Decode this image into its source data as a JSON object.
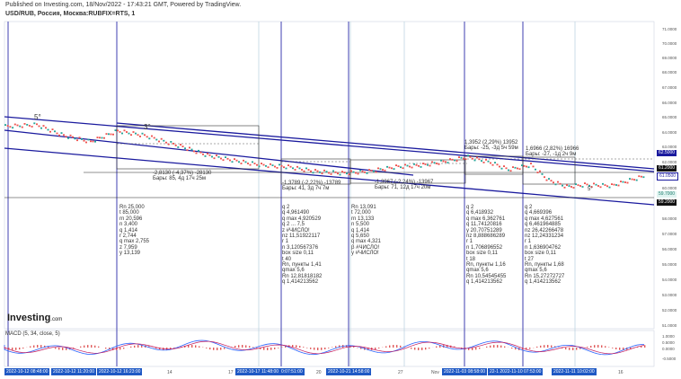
{
  "header": {
    "published": "Published on Investing.com, 18/Nov/2022 - 17:43:21 GMT, Powered by TradingView.",
    "symbol": "USD/RUB, Россия, Москва:RUBFIX=RTS, 1"
  },
  "logo": {
    "name": "Investing",
    "suffix": ".com"
  },
  "indicator": {
    "label": "MACD (5, 34, close, 5)"
  },
  "price_axis": {
    "ticks": [
      "71.0000",
      "70.0000",
      "69.0000",
      "68.0000",
      "67.0000",
      "66.0000",
      "65.0000",
      "64.0000",
      "63.0000",
      "62.0000",
      "60.0000",
      "59.0000",
      "58.0000",
      "57.0000",
      "56.0000",
      "55.0000",
      "54.0000",
      "53.0000",
      "52.0000",
      "51.0000"
    ],
    "labels": {
      "p1": "62.5000",
      "p2": "61.2000",
      "p3": "61.0500",
      "p4": "59.7000",
      "p5": "59.2000"
    },
    "macd_ticks": [
      "1.0000",
      "0.5000",
      "0.0000",
      "-0.5000"
    ]
  },
  "time_axis": {
    "ticks": [
      "14",
      "17",
      "20",
      "27",
      "Nov",
      "16"
    ],
    "selected": [
      "2022-10-12 08:48:00",
      "2022-10-12 11:20:00",
      "2022-10-12 16:23:00",
      "2022-10-17 11:48:00",
      "0:07:51:00",
      "2022-10-21 14:58:00",
      "2022-11-03 08:58:00",
      "22-1 2022-11-10 07:53:00",
      "2022-11-11 10:02:00"
    ]
  },
  "annotations": {
    "wave_a": "5°",
    "wave_b": "3°",
    "wave_c": "5°",
    "measure1": "-2,8130 (-4,37%) -28130\nБары: 85, 4д 17ч 25м",
    "measure2": "-1,3789 (-2,22%) -13789\nБары: 41, 3д 7ч 7м",
    "measure3": "-1,3967 (-2,24%) -13967\nБары: 71, 12д 17ч 20м",
    "measure4": "1,3952 (2,29%) 13952\nБары: -25, -3д 5ч 59м",
    "measure5": "1,6966 (2,82%) 16966\nБары: -27, -1д 2ч 9м",
    "stats1": "Rn 25,000\nt 85,000\nrn 20,596\nn 3,400\nq 1,414\nr 2,744\nq max 2,755\nz 7,959\ny 13,139",
    "stats2": "q 2\nq 4,961490\nq max 4,920529\nq 2 ... 7,5\nz #ЧИСЛО!\nnz 11,51922117\nr 1\nn 3,120567376\nbox size 0,11\nt 40\nRn, пункты 1,41\nqmax 5,6\nRn 12,81818182\nq 1,414213562",
    "stats3": "Rn 13,091\nt 72,000\nrn 13,133\nn 5,500\nq 1,414\nq 5,650\nq max 4,321\nβ #ЧИСЛО!\ny #ЧИСЛО!",
    "stats4": "q 2\nq 6,418932\nq max 6,362761\nq 11,74120816\ny 20,70751289\nnz 8,888686289\nr 1\nn 1,706896552\nbox size 0,11\nt 18\nRn, пункты 1,16\nqmax 5,6\nRn 10,54545455\nq 1,414213562",
    "stats5": "q 2\nq 4,669396\nq max 4,627561\nq 6,461964885\nnz 26,42266478\nnz 12,24331234\nr 1\nn 1,636904762\nbox size 0,11\nt 27\nRn, пункты 1,68\nqmax 5,6\nRn 15,27272727\nq 1,414213562"
  },
  "colors": {
    "up": "#26a69a",
    "down": "#ef5350",
    "channel": "#1a1a9e",
    "vline": "#3f3fb0"
  }
}
